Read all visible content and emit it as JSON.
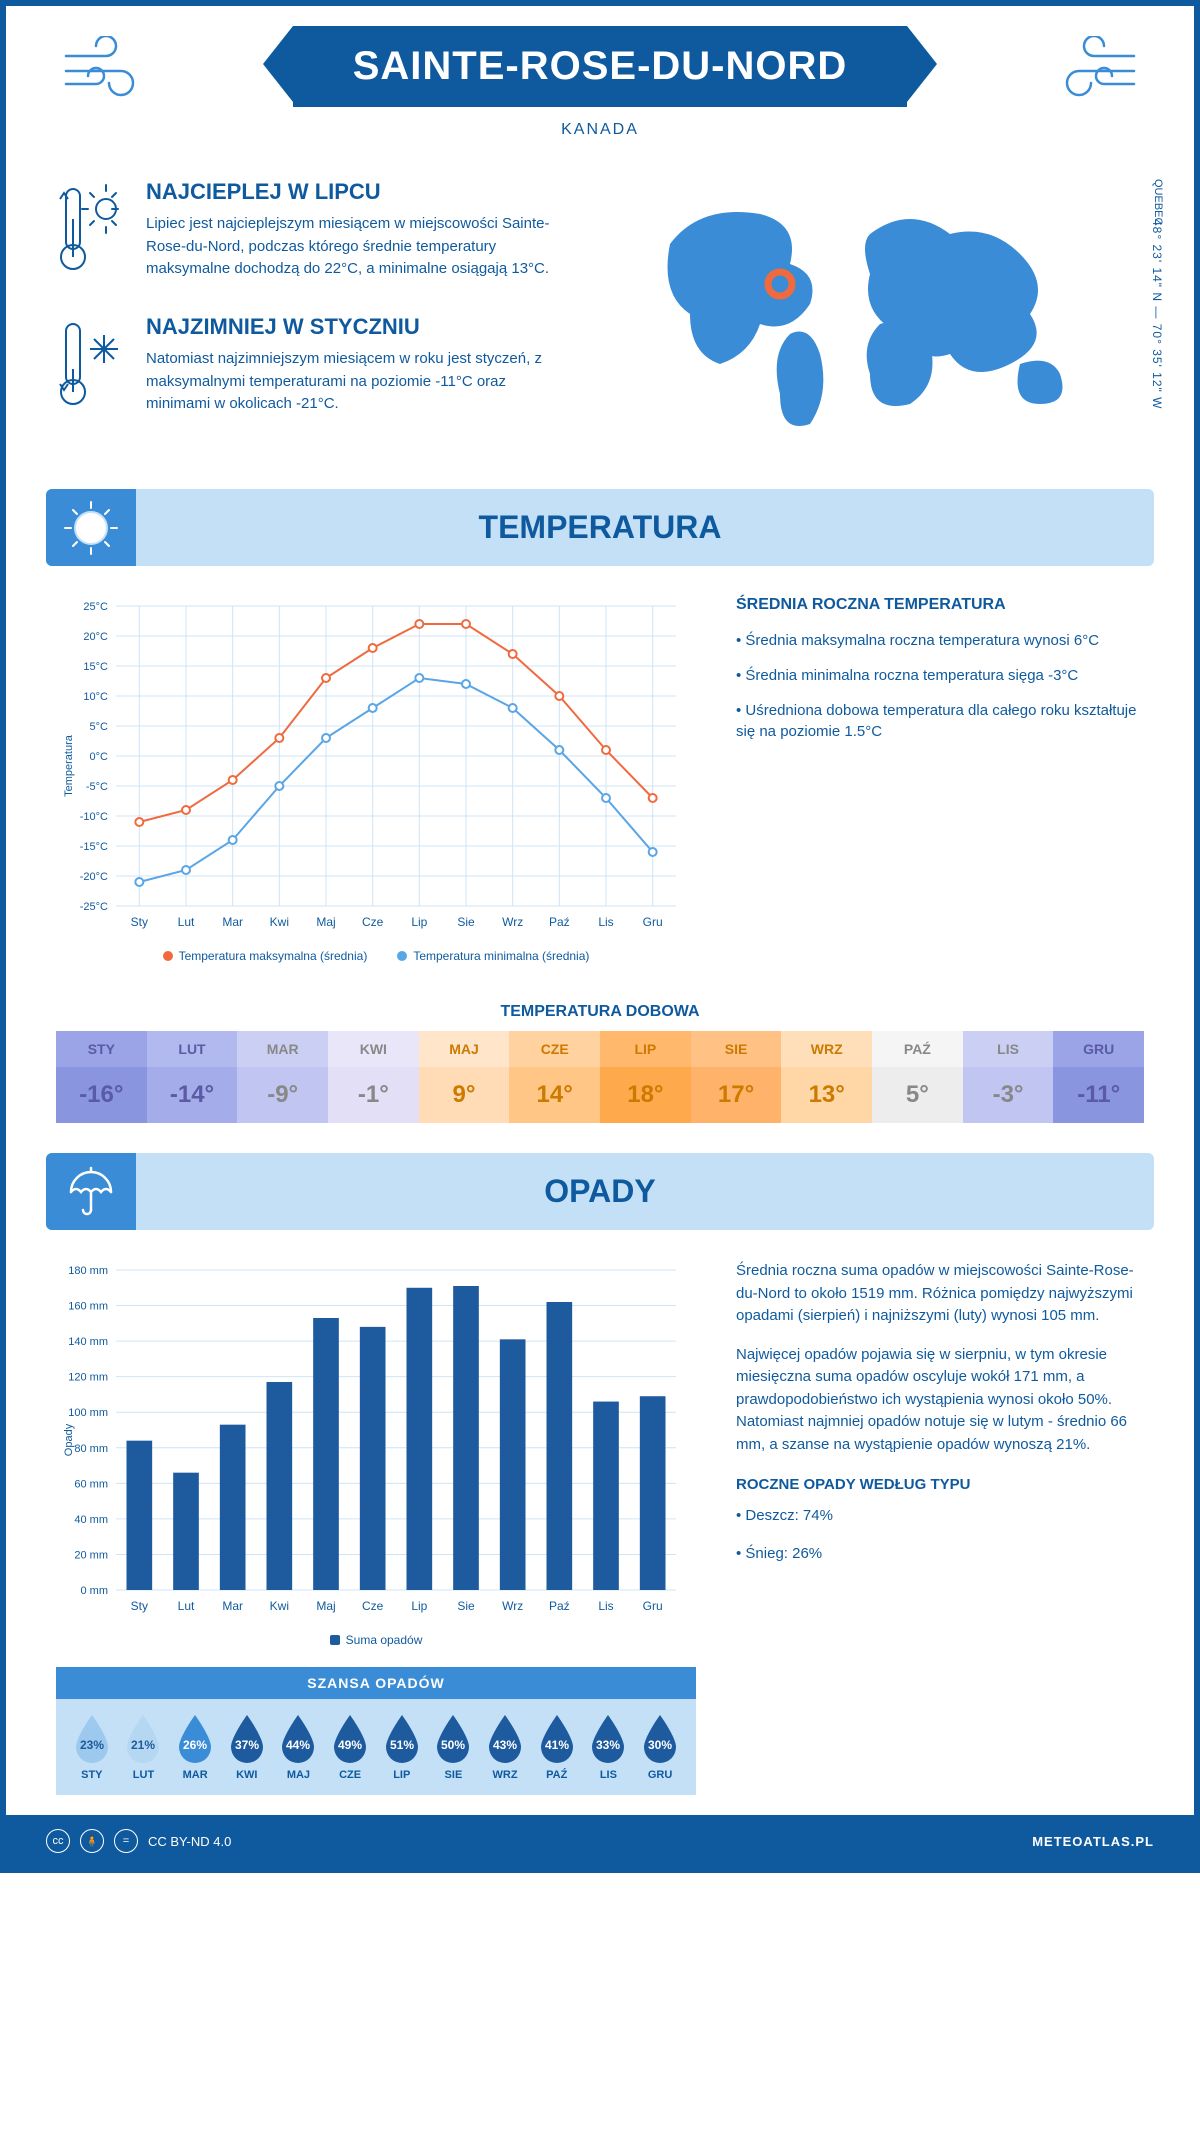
{
  "header": {
    "title": "SAINTE-ROSE-DU-NORD",
    "country": "KANADA",
    "region": "QUEBEC",
    "coords": "48° 23' 14\" N — 70° 35' 12\" W"
  },
  "intro": {
    "warm": {
      "title": "NAJCIEPLEJ W LIPCU",
      "text": "Lipiec jest najcieplejszym miesiącem w miejscowości Sainte-Rose-du-Nord, podczas którego średnie temperatury maksymalne dochodzą do 22°C, a minimalne osiągają 13°C."
    },
    "cold": {
      "title": "NAJZIMNIEJ W STYCZNIU",
      "text": "Natomiast najzimniejszym miesiącem w roku jest styczeń, z maksymalnymi temperaturami na poziomie -11°C oraz minimami w okolicach -21°C."
    }
  },
  "temperature_section": {
    "title": "TEMPERATURA",
    "chart": {
      "type": "line",
      "months": [
        "Sty",
        "Lut",
        "Mar",
        "Kwi",
        "Maj",
        "Cze",
        "Lip",
        "Sie",
        "Wrz",
        "Paź",
        "Lis",
        "Gru"
      ],
      "max_series": [
        -11,
        -9,
        -4,
        3,
        13,
        18,
        22,
        22,
        17,
        10,
        1,
        -7
      ],
      "min_series": [
        -21,
        -19,
        -14,
        -5,
        3,
        8,
        13,
        12,
        8,
        1,
        -7,
        -16
      ],
      "max_color": "#f06a3e",
      "min_color": "#5aa5e6",
      "ylim": [
        -25,
        25
      ],
      "ytick_step": 5,
      "ylabel": "Temperatura",
      "grid_color": "#d0e4f5",
      "background_color": "#ffffff",
      "line_width": 2,
      "marker_radius": 4,
      "legend_max": "Temperatura maksymalna (średnia)",
      "legend_min": "Temperatura minimalna (średnia)"
    },
    "info": {
      "heading": "ŚREDNIA ROCZNA TEMPERATURA",
      "bullets": [
        "• Średnia maksymalna roczna temperatura wynosi 6°C",
        "• Średnia minimalna roczna temperatura sięga -3°C",
        "• Uśredniona dobowa temperatura dla całego roku kształtuje się na poziomie 1.5°C"
      ]
    },
    "daily": {
      "title": "TEMPERATURA DOBOWA",
      "months": [
        "STY",
        "LUT",
        "MAR",
        "KWI",
        "MAJ",
        "CZE",
        "LIP",
        "SIE",
        "WRZ",
        "PAŹ",
        "LIS",
        "GRU"
      ],
      "values": [
        "-16°",
        "-14°",
        "-9°",
        "-1°",
        "9°",
        "14°",
        "18°",
        "17°",
        "13°",
        "5°",
        "-3°",
        "-11°"
      ],
      "head_colors": [
        "#9aa4e6",
        "#b2b9ee",
        "#cbcff4",
        "#e8e6f8",
        "#ffe6cb",
        "#ffd2a0",
        "#ffb86c",
        "#ffc184",
        "#ffdfb9",
        "#f5f5f5",
        "#cbcff4",
        "#9aa4e6"
      ],
      "val_colors": [
        "#8a95e0",
        "#a4ace9",
        "#c0c5f1",
        "#e2dff6",
        "#ffdcb6",
        "#ffc685",
        "#ffa94d",
        "#ffb36a",
        "#ffd6a5",
        "#ededed",
        "#c0c5f1",
        "#8a95e0"
      ],
      "text_colors": [
        "#5a5aa5",
        "#5a5aa5",
        "#888",
        "#888",
        "#cc7a00",
        "#cc7a00",
        "#cc7a00",
        "#cc7a00",
        "#cc7a00",
        "#888",
        "#888",
        "#5a5aa5"
      ]
    }
  },
  "precip_section": {
    "title": "OPADY",
    "chart": {
      "type": "bar",
      "months": [
        "Sty",
        "Lut",
        "Mar",
        "Kwi",
        "Maj",
        "Cze",
        "Lip",
        "Sie",
        "Wrz",
        "Paź",
        "Lis",
        "Gru"
      ],
      "values": [
        84,
        66,
        93,
        117,
        153,
        148,
        170,
        171,
        141,
        162,
        106,
        109
      ],
      "bar_color": "#1e5a9e",
      "ylim": [
        0,
        180
      ],
      "ytick_step": 20,
      "ylabel": "Opady",
      "grid_color": "#d0e4f5",
      "legend": "Suma opadów",
      "bar_width": 0.55
    },
    "info": {
      "p1": "Średnia roczna suma opadów w miejscowości Sainte-Rose-du-Nord to około 1519 mm. Różnica pomiędzy najwyższymi opadami (sierpień) i najniższymi (luty) wynosi 105 mm.",
      "p2": "Najwięcej opadów pojawia się w sierpniu, w tym okresie miesięczna suma opadów oscyluje wokół 171 mm, a prawdopodobieństwo ich wystąpienia wynosi około 50%. Natomiast najmniej opadów notuje się w lutym - średnio 66 mm, a szanse na wystąpienie opadów wynoszą 21%.",
      "type_heading": "ROCZNE OPADY WEDŁUG TYPU",
      "type_rain": "• Deszcz: 74%",
      "type_snow": "• Śnieg: 26%"
    },
    "chance": {
      "title": "SZANSA OPADÓW",
      "months": [
        "STY",
        "LUT",
        "MAR",
        "KWI",
        "MAJ",
        "CZE",
        "LIP",
        "SIE",
        "WRZ",
        "PAŹ",
        "LIS",
        "GRU"
      ],
      "values": [
        "23%",
        "21%",
        "26%",
        "37%",
        "44%",
        "49%",
        "51%",
        "50%",
        "43%",
        "41%",
        "33%",
        "30%"
      ],
      "drop_colors": [
        "#9cc9ed",
        "#b5d7f2",
        "#3a8cd6",
        "#1e5a9e",
        "#1e5a9e",
        "#1e5a9e",
        "#1e5a9e",
        "#1e5a9e",
        "#1e5a9e",
        "#1e5a9e",
        "#1e5a9e",
        "#1e5a9e"
      ],
      "text_colors": [
        "#1e5a9e",
        "#1e5a9e",
        "#fff",
        "#fff",
        "#fff",
        "#fff",
        "#fff",
        "#fff",
        "#fff",
        "#fff",
        "#fff",
        "#fff"
      ]
    }
  },
  "footer": {
    "license": "CC BY-ND 4.0",
    "site": "METEOATLAS.PL"
  }
}
